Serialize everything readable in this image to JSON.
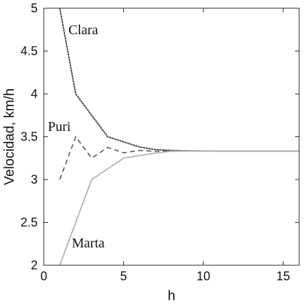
{
  "chart_data": {
    "type": "line",
    "xlabel": "h",
    "ylabel": "Velocidad, km/h",
    "xlim": [
      0,
      16
    ],
    "ylim": [
      2,
      5
    ],
    "xticks": [
      0,
      5,
      10,
      15
    ],
    "yticks": [
      2,
      2.5,
      3,
      3.5,
      4,
      4.5,
      5
    ],
    "xtick_labels": [
      "0",
      "5",
      "10",
      "15"
    ],
    "ytick_labels": [
      "2",
      "2.5",
      "3",
      "3.5",
      "4",
      "4.5",
      "5"
    ],
    "grid": false,
    "legend": "none",
    "series": [
      {
        "name": "Clara",
        "style": "dotted",
        "color": "#444444",
        "x": [
          1,
          2,
          3,
          4,
          5,
          6,
          7,
          8,
          9,
          10,
          11,
          12,
          13,
          14,
          15,
          16
        ],
        "y": [
          5.0,
          4.0,
          3.75,
          3.5,
          3.44,
          3.38,
          3.35,
          3.34,
          3.335,
          3.334,
          3.3333,
          3.3333,
          3.3333,
          3.3333,
          3.3333,
          3.3333
        ]
      },
      {
        "name": "Puri",
        "style": "dashed",
        "color": "#555555",
        "x": [
          1,
          2,
          3,
          4,
          5,
          6,
          7,
          8,
          9,
          10,
          11,
          12,
          13,
          14,
          15,
          16
        ],
        "y": [
          3.0,
          3.5,
          3.25,
          3.375,
          3.3125,
          3.34,
          3.33,
          3.335,
          3.333,
          3.3335,
          3.3333,
          3.3333,
          3.3333,
          3.3333,
          3.3333,
          3.3333
        ]
      },
      {
        "name": "Marta",
        "style": "solid",
        "color": "#b0b0b0",
        "x": [
          1,
          2,
          3,
          4,
          5,
          6,
          7,
          8,
          9,
          10,
          11,
          12,
          13,
          14,
          15,
          16
        ],
        "y": [
          2.0,
          2.5,
          3.0,
          3.125,
          3.25,
          3.28,
          3.31,
          3.33,
          3.332,
          3.3333,
          3.3333,
          3.3333,
          3.3333,
          3.3333,
          3.3333,
          3.3333
        ]
      }
    ]
  }
}
